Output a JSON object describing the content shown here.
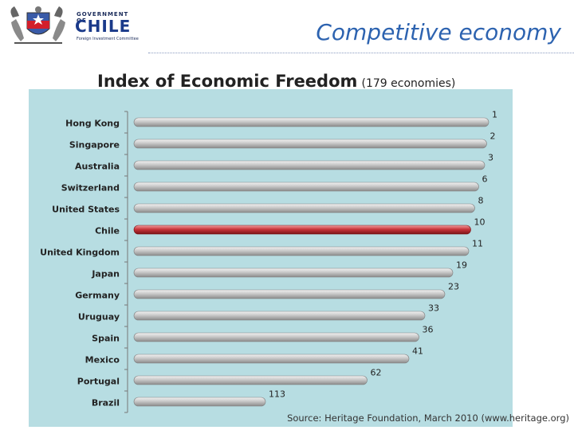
{
  "header": {
    "logo_gov": "GOVERNMENT OF",
    "logo_name": "CHILE",
    "logo_sub": "Foreign Investment Committee",
    "slide_title": "Competitive economy"
  },
  "colors": {
    "bar": "#c6c6c6",
    "highlight": "#c9343a",
    "plot_bg": "#b7dde2",
    "title_blue": "#2d63b0"
  },
  "chart_data": {
    "type": "bar",
    "orientation": "horizontal",
    "title": "Index of Economic Freedom",
    "subtitle": "(179 economies)",
    "categories": [
      "Hong Kong",
      "Singapore",
      "Australia",
      "Switzerland",
      "United States",
      "Chile",
      "United Kingdom",
      "Japan",
      "Germany",
      "Uruguay",
      "Spain",
      "Mexico",
      "Portugal",
      "Brazil"
    ],
    "values": [
      1,
      2,
      3,
      6,
      8,
      10,
      11,
      19,
      23,
      33,
      36,
      41,
      62,
      113
    ],
    "value_labels": [
      "1",
      "2",
      "3",
      "6",
      "8",
      "10",
      "11",
      "19",
      "23",
      "33",
      "36",
      "41",
      "62",
      "113"
    ],
    "highlight": "Chile",
    "rank_max": 179,
    "source": "Source: Heritage Foundation, March 2010 (www.heritage.org)"
  }
}
